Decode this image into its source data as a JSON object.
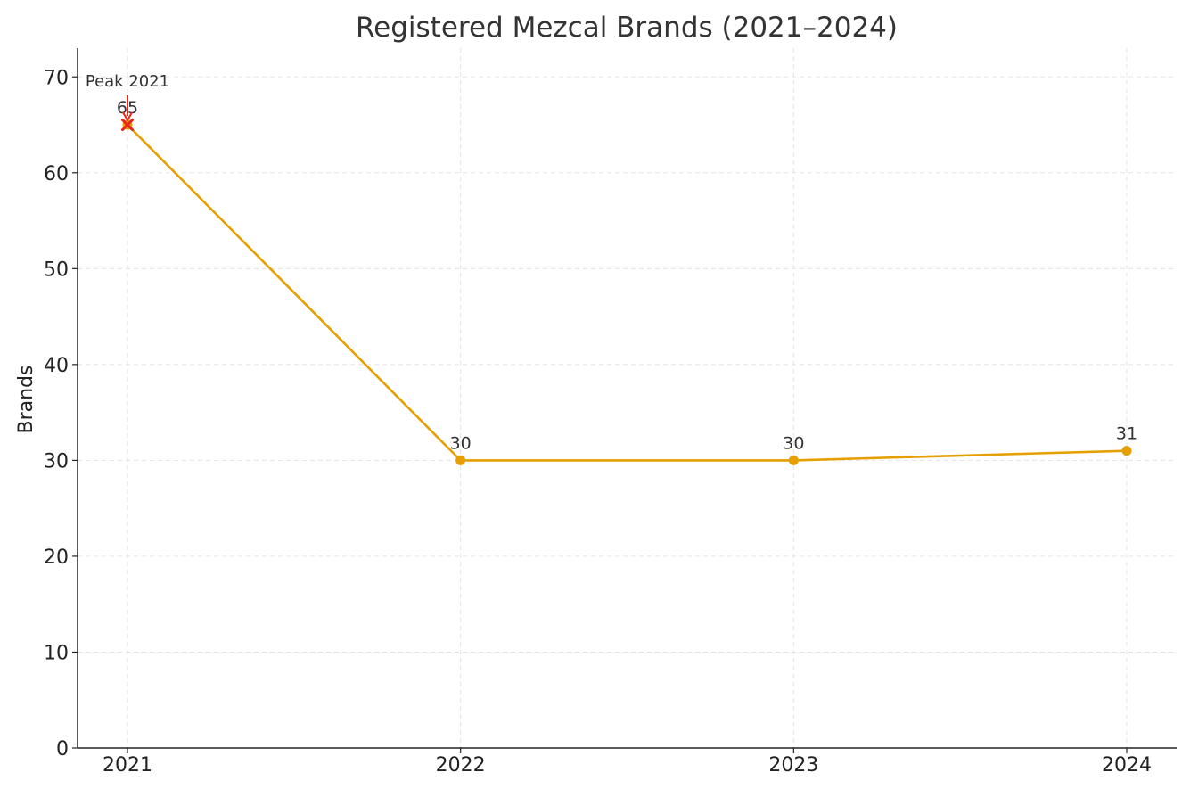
{
  "chart_data": {
    "type": "line",
    "title": "Registered Mezcal Brands (2021–2024)",
    "xlabel": "",
    "ylabel": "Brands",
    "categories": [
      "2021",
      "2022",
      "2023",
      "2024"
    ],
    "series": [
      {
        "values": [
          65,
          30,
          30,
          31
        ],
        "color": "#E69F00"
      }
    ],
    "data_labels": [
      "65",
      "30",
      "30",
      "31"
    ],
    "ylim": [
      0,
      73
    ],
    "yticks": [
      0,
      10,
      20,
      30,
      40,
      50,
      60,
      70
    ],
    "grid": true,
    "highlight": {
      "category": "2021",
      "value": 65,
      "marker": "x",
      "color": "#E8261A"
    },
    "annotations": [
      {
        "text": "Peak 2021",
        "category": "2021",
        "value": 65,
        "arrow": true,
        "color": "#E8261A"
      }
    ]
  }
}
